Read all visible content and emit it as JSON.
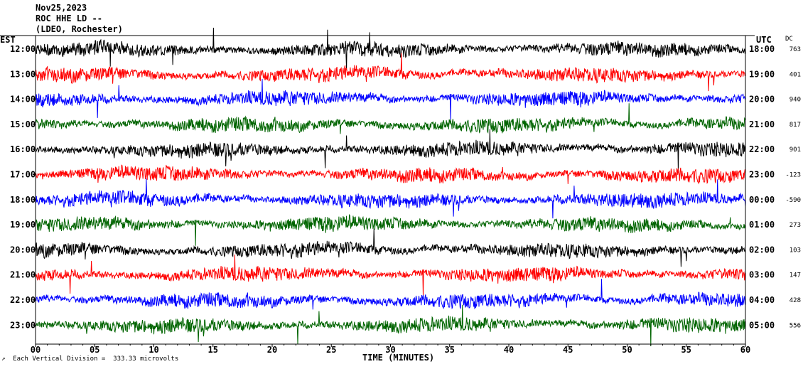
{
  "header": {
    "date": "Nov25,2023",
    "station": "ROC HHE LD --",
    "org": "(LDEO, Rochester)"
  },
  "footer": {
    "marker": "↗",
    "scale_text": "Each Vertical Division =  333.33 microvolts"
  },
  "colors": {
    "trace_cycle": [
      "#000000",
      "#ff0000",
      "#0000ff",
      "#006400"
    ],
    "background": "#ffffff",
    "axis": "#000000"
  },
  "chart_data": {
    "type": "line",
    "subtype": "helicorder",
    "title": "Nov25,2023",
    "subtitle": "ROC HHE LD -- (LDEO, Rochester)",
    "xlabel": "TIME (MINUTES)",
    "xlim": [
      0,
      60
    ],
    "xticks": [
      "00",
      "05",
      "10",
      "15",
      "20",
      "25",
      "30",
      "35",
      "40",
      "45",
      "50",
      "55",
      "60"
    ],
    "left_axis_title": "EST",
    "right_axis_title": "UTC",
    "dc_title": "DC",
    "rows": [
      {
        "est": "12:00",
        "utc": "18:00",
        "dc": "763",
        "color": "#000000"
      },
      {
        "est": "13:00",
        "utc": "19:00",
        "dc": "401",
        "color": "#ff0000"
      },
      {
        "est": "14:00",
        "utc": "20:00",
        "dc": "940",
        "color": "#0000ff"
      },
      {
        "est": "15:00",
        "utc": "21:00",
        "dc": "817",
        "color": "#006400"
      },
      {
        "est": "16:00",
        "utc": "22:00",
        "dc": "901",
        "color": "#000000"
      },
      {
        "est": "17:00",
        "utc": "23:00",
        "dc": "-123",
        "color": "#ff0000"
      },
      {
        "est": "18:00",
        "utc": "00:00",
        "dc": "-590",
        "color": "#0000ff"
      },
      {
        "est": "19:00",
        "utc": "01:00",
        "dc": "273",
        "color": "#006400"
      },
      {
        "est": "20:00",
        "utc": "02:00",
        "dc": "103",
        "color": "#000000"
      },
      {
        "est": "21:00",
        "utc": "03:00",
        "dc": "147",
        "color": "#ff0000"
      },
      {
        "est": "22:00",
        "utc": "04:00",
        "dc": "428",
        "color": "#0000ff"
      },
      {
        "est": "23:00",
        "utc": "05:00",
        "dc": "556",
        "color": "#006400"
      }
    ]
  }
}
